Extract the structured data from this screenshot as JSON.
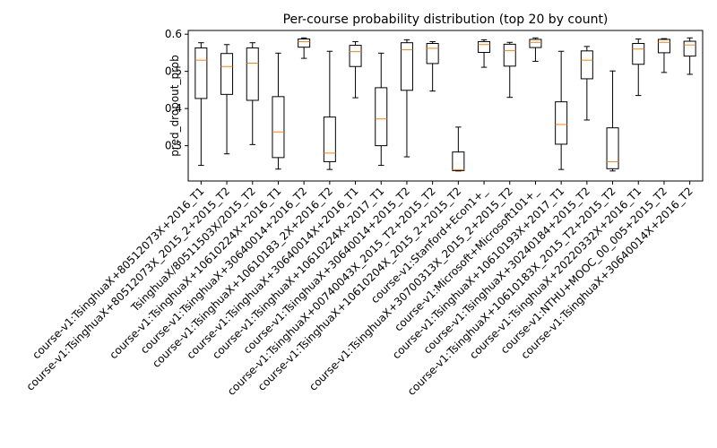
{
  "chart_data": {
    "type": "box",
    "title": "Per-course probability distribution (top 20 by count)",
    "xlabel": "",
    "ylabel": "pred_dropout_prob",
    "ylim": [
      0.205,
      0.61
    ],
    "yticks": [
      0.3,
      0.4,
      0.5,
      0.6
    ],
    "ytick_labels": [
      "0.3",
      "0.4",
      "0.5",
      "0.6"
    ],
    "colors": {
      "box": "#000000",
      "median": "#ff7f0e"
    },
    "categories": [
      "course-v1:TsinghuaX+80512073X+2016_T1",
      "course-v1:TsinghuaX+80512073X_2015_2+2015_T2",
      "TsinghuaX/80511503X/2015_T2",
      "course-v1:TsinghuaX+10610224X+2016_T1",
      "course-v1:TsinghuaX+30640014+2016_T2",
      "course-v1:TsinghuaX+10610183_2X+2016_T2",
      "course-v1:TsinghuaX+30640014X+2016_T1",
      "course-v1:TsinghuaX+10610224X+2017_T1",
      "course-v1:TsinghuaX+30640014+2015_T2",
      "course-v1:TsinghuaX+00740043X_2015_T2+2015_T2",
      "course-v1:TsinghuaX+10610204X_2015_2+2015_T2",
      "course-v1:Stanford+Econ1+_",
      "course-v1:TsinghuaX+30700313X_2015_2+2015_T2",
      "course-v1:Microsoft+Microsoft101+_",
      "course-v1:TsinghuaX+10610193X+2017_T1",
      "course-v1:TsinghuaX+30240184+2015_T2",
      "course-v1:TsinghuaX+10610183X_2015_T2+2015_T2",
      "course-v1:TsinghuaX+20220332X+2016_T1",
      "course-v1:NTHU+MOOC_00_005+2015_T2",
      "course-v1:TsinghuaX+30640014X+2016_T2"
    ],
    "boxes": [
      {
        "min": 0.247,
        "q1": 0.427,
        "median": 0.53,
        "q3": 0.563,
        "max": 0.577
      },
      {
        "min": 0.278,
        "q1": 0.438,
        "median": 0.513,
        "q3": 0.548,
        "max": 0.572
      },
      {
        "min": 0.303,
        "q1": 0.422,
        "median": 0.522,
        "q3": 0.563,
        "max": 0.577
      },
      {
        "min": 0.237,
        "q1": 0.268,
        "median": 0.337,
        "q3": 0.432,
        "max": 0.549
      },
      {
        "min": 0.535,
        "q1": 0.565,
        "median": 0.58,
        "q3": 0.587,
        "max": 0.59
      },
      {
        "min": 0.236,
        "q1": 0.257,
        "median": 0.28,
        "q3": 0.377,
        "max": 0.554
      },
      {
        "min": 0.429,
        "q1": 0.513,
        "median": 0.553,
        "q3": 0.57,
        "max": 0.58
      },
      {
        "min": 0.247,
        "q1": 0.3,
        "median": 0.372,
        "q3": 0.456,
        "max": 0.549
      },
      {
        "min": 0.27,
        "q1": 0.449,
        "median": 0.558,
        "q3": 0.577,
        "max": 0.585
      },
      {
        "min": 0.447,
        "q1": 0.521,
        "median": 0.562,
        "q3": 0.575,
        "max": 0.58
      },
      {
        "min": 0.232,
        "q1": 0.233,
        "median": 0.235,
        "q3": 0.283,
        "max": 0.35
      },
      {
        "min": 0.511,
        "q1": 0.551,
        "median": 0.572,
        "q3": 0.58,
        "max": 0.585
      },
      {
        "min": 0.43,
        "q1": 0.514,
        "median": 0.556,
        "q3": 0.573,
        "max": 0.578
      },
      {
        "min": 0.527,
        "q1": 0.564,
        "median": 0.578,
        "q3": 0.586,
        "max": 0.59
      },
      {
        "min": 0.236,
        "q1": 0.304,
        "median": 0.357,
        "q3": 0.418,
        "max": 0.554
      },
      {
        "min": 0.369,
        "q1": 0.48,
        "median": 0.53,
        "q3": 0.555,
        "max": 0.567
      },
      {
        "min": 0.232,
        "q1": 0.238,
        "median": 0.257,
        "q3": 0.348,
        "max": 0.501
      },
      {
        "min": 0.435,
        "q1": 0.519,
        "median": 0.56,
        "q3": 0.575,
        "max": 0.587
      },
      {
        "min": 0.497,
        "q1": 0.55,
        "median": 0.578,
        "q3": 0.586,
        "max": 0.588
      },
      {
        "min": 0.492,
        "q1": 0.541,
        "median": 0.571,
        "q3": 0.581,
        "max": 0.59
      }
    ]
  }
}
